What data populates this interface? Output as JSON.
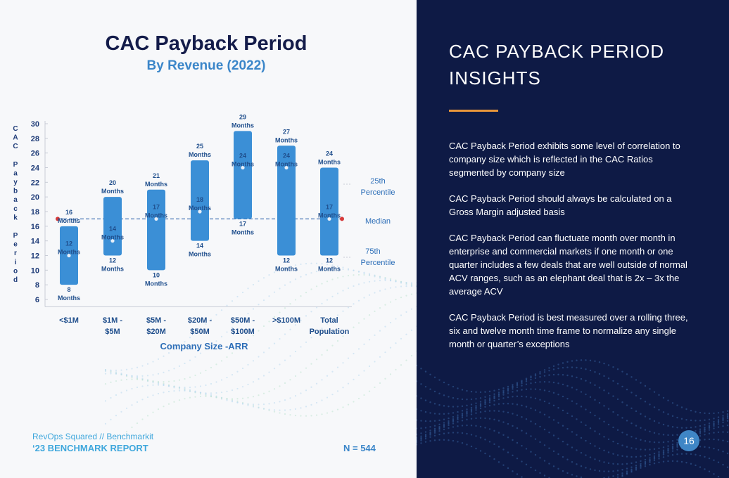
{
  "chart": {
    "title": "CAC Payback Period",
    "subtitle": "By Revenue (2022)",
    "ylabel": "CAC Payback Period",
    "xlabel": "Company Size -ARR",
    "n_label": "N = 544"
  },
  "footer": {
    "line1": "RevOps Squared // Benchmarkit",
    "line2": "‘23 BENCHMARK REPORT"
  },
  "insights": {
    "title_line1": "CAC PAYBACK PERIOD",
    "title_line2": "INSIGHTS",
    "paragraphs": [
      "CAC Payback Period exhibits some level of correlation to company size which is reflected in the CAC Ratios segmented by company size",
      "CAC Payback Period should always be calculated on a Gross Margin adjusted basis",
      "CAC Payback Period can fluctuate month over month in enterprise and commercial markets if one month or one quarter includes a few deals that are well outside of normal ACV ranges, such as an elephant deal that is 2x – 3x the average ACV",
      "CAC Payback Period is best measured over a rolling three, six and twelve month time frame to normalize any single month or quarter’s exceptions"
    ],
    "page_number": "16"
  },
  "chart_data": {
    "type": "bar",
    "subtype": "floating-range",
    "title": "CAC Payback Period",
    "subtitle": "By Revenue (2022)",
    "xlabel": "Company Size -ARR",
    "ylabel": "CAC Payback Period",
    "ylim": [
      6,
      30
    ],
    "yticks": [
      6,
      8,
      10,
      12,
      14,
      16,
      18,
      20,
      22,
      24,
      26,
      28,
      30
    ],
    "categories": [
      [
        "<$1M"
      ],
      [
        "$1M -",
        "$5M"
      ],
      [
        "$5M -",
        "$20M"
      ],
      [
        "$20M -",
        "$50M"
      ],
      [
        "$50M -",
        "$100M"
      ],
      [
        ">$100M"
      ],
      [
        "Total",
        "Population"
      ]
    ],
    "series": [
      {
        "name": "25th Percentile",
        "values": [
          16,
          20,
          21,
          25,
          29,
          27,
          24
        ]
      },
      {
        "name": "Median",
        "values": [
          12,
          14,
          17,
          18,
          24,
          24,
          17
        ]
      },
      {
        "name": "75th Percentile",
        "values": [
          8,
          12,
          10,
          14,
          17,
          12,
          12
        ]
      }
    ],
    "overall_median": 17,
    "unit_label": "Months",
    "legend": [
      "25th Percentile",
      "Median",
      "75th Percentile"
    ],
    "legend_position": "right",
    "colors": {
      "bar": "#3b8fd6",
      "median_line": "#2a5fa8",
      "dot": "#d63a3a",
      "label": "#1f4e8c",
      "legend": "#2e6fb8"
    }
  }
}
